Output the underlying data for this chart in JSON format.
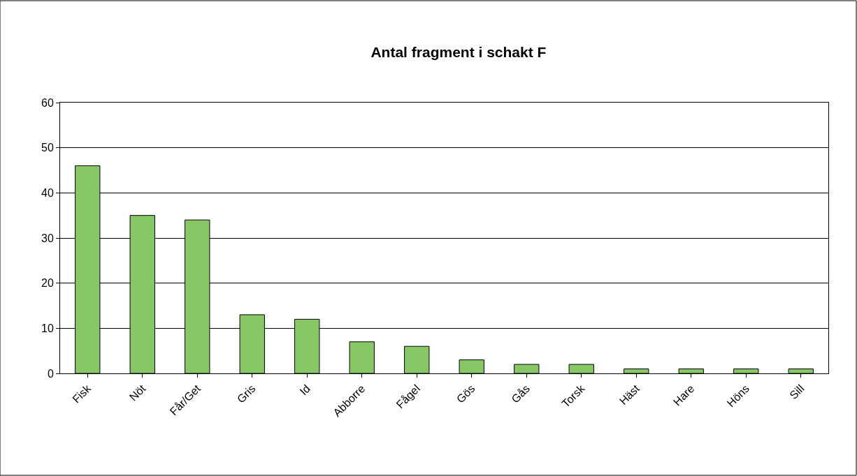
{
  "chart_data": {
    "type": "bar",
    "title": "Antal fragment i schakt F",
    "categories": [
      "Fisk",
      "Nöt",
      "Får/Get",
      "Gris",
      "Id",
      "Abborre",
      "Fågel",
      "Gös",
      "Gås",
      "Torsk",
      "Häst",
      "Hare",
      "Höns",
      "Sill"
    ],
    "values": [
      46,
      35,
      34,
      13,
      12,
      7,
      6,
      3,
      2,
      2,
      1,
      1,
      1,
      1
    ],
    "color": "#88c766",
    "ylim": [
      0,
      60
    ],
    "yticks": [
      0,
      10,
      20,
      30,
      40,
      50,
      60
    ],
    "grid": "y"
  }
}
